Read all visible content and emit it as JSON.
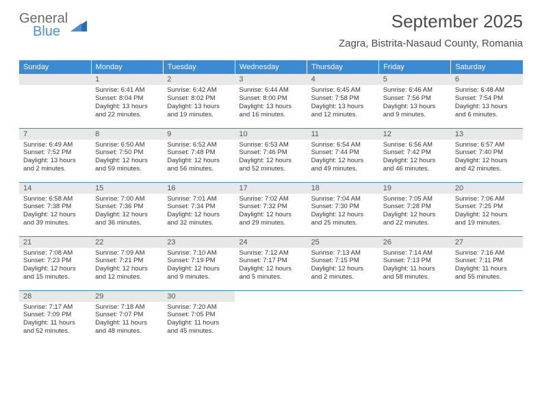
{
  "brand": {
    "general": "General",
    "blue": "Blue"
  },
  "title": "September 2025",
  "location": "Zagra, Bistrita-Nasaud County, Romania",
  "header_color": "#3b8bd4",
  "daynum_bg": "#e8e8e8",
  "weekdays": [
    "Sunday",
    "Monday",
    "Tuesday",
    "Wednesday",
    "Thursday",
    "Friday",
    "Saturday"
  ],
  "start_offset": 1,
  "days": [
    {
      "n": 1,
      "sr": "6:41 AM",
      "ss": "8:04 PM",
      "dl": "13 hours and 22 minutes"
    },
    {
      "n": 2,
      "sr": "6:42 AM",
      "ss": "8:02 PM",
      "dl": "13 hours and 19 minutes"
    },
    {
      "n": 3,
      "sr": "6:44 AM",
      "ss": "8:00 PM",
      "dl": "13 hours and 16 minutes"
    },
    {
      "n": 4,
      "sr": "6:45 AM",
      "ss": "7:58 PM",
      "dl": "13 hours and 12 minutes"
    },
    {
      "n": 5,
      "sr": "6:46 AM",
      "ss": "7:56 PM",
      "dl": "13 hours and 9 minutes"
    },
    {
      "n": 6,
      "sr": "6:48 AM",
      "ss": "7:54 PM",
      "dl": "13 hours and 6 minutes"
    },
    {
      "n": 7,
      "sr": "6:49 AM",
      "ss": "7:52 PM",
      "dl": "13 hours and 2 minutes"
    },
    {
      "n": 8,
      "sr": "6:50 AM",
      "ss": "7:50 PM",
      "dl": "12 hours and 59 minutes"
    },
    {
      "n": 9,
      "sr": "6:52 AM",
      "ss": "7:48 PM",
      "dl": "12 hours and 56 minutes"
    },
    {
      "n": 10,
      "sr": "6:53 AM",
      "ss": "7:46 PM",
      "dl": "12 hours and 52 minutes"
    },
    {
      "n": 11,
      "sr": "6:54 AM",
      "ss": "7:44 PM",
      "dl": "12 hours and 49 minutes"
    },
    {
      "n": 12,
      "sr": "6:56 AM",
      "ss": "7:42 PM",
      "dl": "12 hours and 46 minutes"
    },
    {
      "n": 13,
      "sr": "6:57 AM",
      "ss": "7:40 PM",
      "dl": "12 hours and 42 minutes"
    },
    {
      "n": 14,
      "sr": "6:58 AM",
      "ss": "7:38 PM",
      "dl": "12 hours and 39 minutes"
    },
    {
      "n": 15,
      "sr": "7:00 AM",
      "ss": "7:36 PM",
      "dl": "12 hours and 36 minutes"
    },
    {
      "n": 16,
      "sr": "7:01 AM",
      "ss": "7:34 PM",
      "dl": "12 hours and 32 minutes"
    },
    {
      "n": 17,
      "sr": "7:02 AM",
      "ss": "7:32 PM",
      "dl": "12 hours and 29 minutes"
    },
    {
      "n": 18,
      "sr": "7:04 AM",
      "ss": "7:30 PM",
      "dl": "12 hours and 25 minutes"
    },
    {
      "n": 19,
      "sr": "7:05 AM",
      "ss": "7:28 PM",
      "dl": "12 hours and 22 minutes"
    },
    {
      "n": 20,
      "sr": "7:06 AM",
      "ss": "7:25 PM",
      "dl": "12 hours and 19 minutes"
    },
    {
      "n": 21,
      "sr": "7:08 AM",
      "ss": "7:23 PM",
      "dl": "12 hours and 15 minutes"
    },
    {
      "n": 22,
      "sr": "7:09 AM",
      "ss": "7:21 PM",
      "dl": "12 hours and 12 minutes"
    },
    {
      "n": 23,
      "sr": "7:10 AM",
      "ss": "7:19 PM",
      "dl": "12 hours and 9 minutes"
    },
    {
      "n": 24,
      "sr": "7:12 AM",
      "ss": "7:17 PM",
      "dl": "12 hours and 5 minutes"
    },
    {
      "n": 25,
      "sr": "7:13 AM",
      "ss": "7:15 PM",
      "dl": "12 hours and 2 minutes"
    },
    {
      "n": 26,
      "sr": "7:14 AM",
      "ss": "7:13 PM",
      "dl": "11 hours and 58 minutes"
    },
    {
      "n": 27,
      "sr": "7:16 AM",
      "ss": "7:11 PM",
      "dl": "11 hours and 55 minutes"
    },
    {
      "n": 28,
      "sr": "7:17 AM",
      "ss": "7:09 PM",
      "dl": "11 hours and 52 minutes"
    },
    {
      "n": 29,
      "sr": "7:18 AM",
      "ss": "7:07 PM",
      "dl": "11 hours and 48 minutes"
    },
    {
      "n": 30,
      "sr": "7:20 AM",
      "ss": "7:05 PM",
      "dl": "11 hours and 45 minutes"
    }
  ],
  "labels": {
    "sunrise": "Sunrise:",
    "sunset": "Sunset:",
    "daylight": "Daylight:"
  }
}
